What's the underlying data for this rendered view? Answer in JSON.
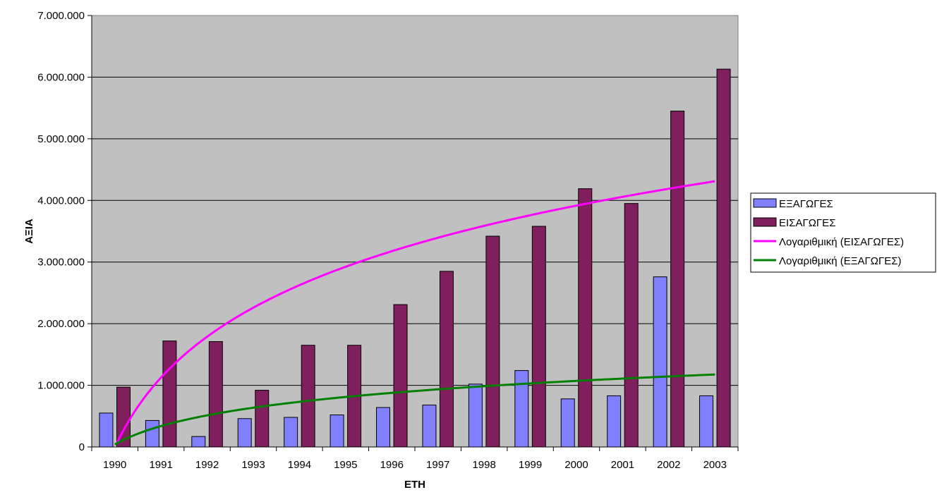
{
  "chart_data": {
    "type": "bar",
    "title": "",
    "xlabel": "ΕΤΗ",
    "ylabel": "ΑΞΙΑ",
    "ylim": [
      0,
      7000000
    ],
    "y_ticks": [
      0,
      1000000,
      2000000,
      3000000,
      4000000,
      5000000,
      6000000,
      7000000
    ],
    "y_tick_labels": [
      "0",
      "1.000.000",
      "2.000.000",
      "3.000.000",
      "4.000.000",
      "5.000.000",
      "6.000.000",
      "7.000.000"
    ],
    "categories": [
      "1990",
      "1991",
      "1992",
      "1993",
      "1994",
      "1995",
      "1996",
      "1997",
      "1998",
      "1999",
      "2000",
      "2001",
      "2002",
      "2003"
    ],
    "series": [
      {
        "name": "ΕΞΑΓΩΓΕΣ",
        "kind": "bar",
        "color": "#8080ff",
        "values": [
          550000,
          430000,
          170000,
          460000,
          480000,
          520000,
          640000,
          680000,
          1020000,
          1240000,
          780000,
          830000,
          2760000,
          830000
        ]
      },
      {
        "name": "ΕΙΣΑΓΩΓΕΣ",
        "kind": "bar",
        "color": "#7f1f5e",
        "values": [
          970000,
          1720000,
          1710000,
          920000,
          1650000,
          1650000,
          2310000,
          2850000,
          3420000,
          3580000,
          4190000,
          3950000,
          5450000,
          6130000
        ]
      }
    ],
    "trendlines": [
      {
        "name": "Λογαριθμική (ΕΙΣΑΓΩΓΕΣ)",
        "type": "logarithmic",
        "of_series": "ΕΙΣΑΓΩΓΕΣ",
        "color": "#ff00ff",
        "values": [
          0,
          1230000,
          1730000,
          2200000,
          2600000,
          2900000,
          3130000,
          3380000,
          3590000,
          3770000,
          3940000,
          4080000,
          4220000,
          4330000
        ]
      },
      {
        "name": "Λογαριθμική (ΕΞΑΓΩΓΕΣ)",
        "type": "logarithmic",
        "of_series": "ΕΞΑΓΩΓΕΣ",
        "color": "#008000",
        "values": [
          0,
          370000,
          530000,
          650000,
          740000,
          810000,
          880000,
          930000,
          980000,
          1030000,
          1070000,
          1100000,
          1140000,
          1170000
        ]
      }
    ],
    "grid": true,
    "plot_background": "#c0c0c0",
    "legend_position": "right"
  }
}
